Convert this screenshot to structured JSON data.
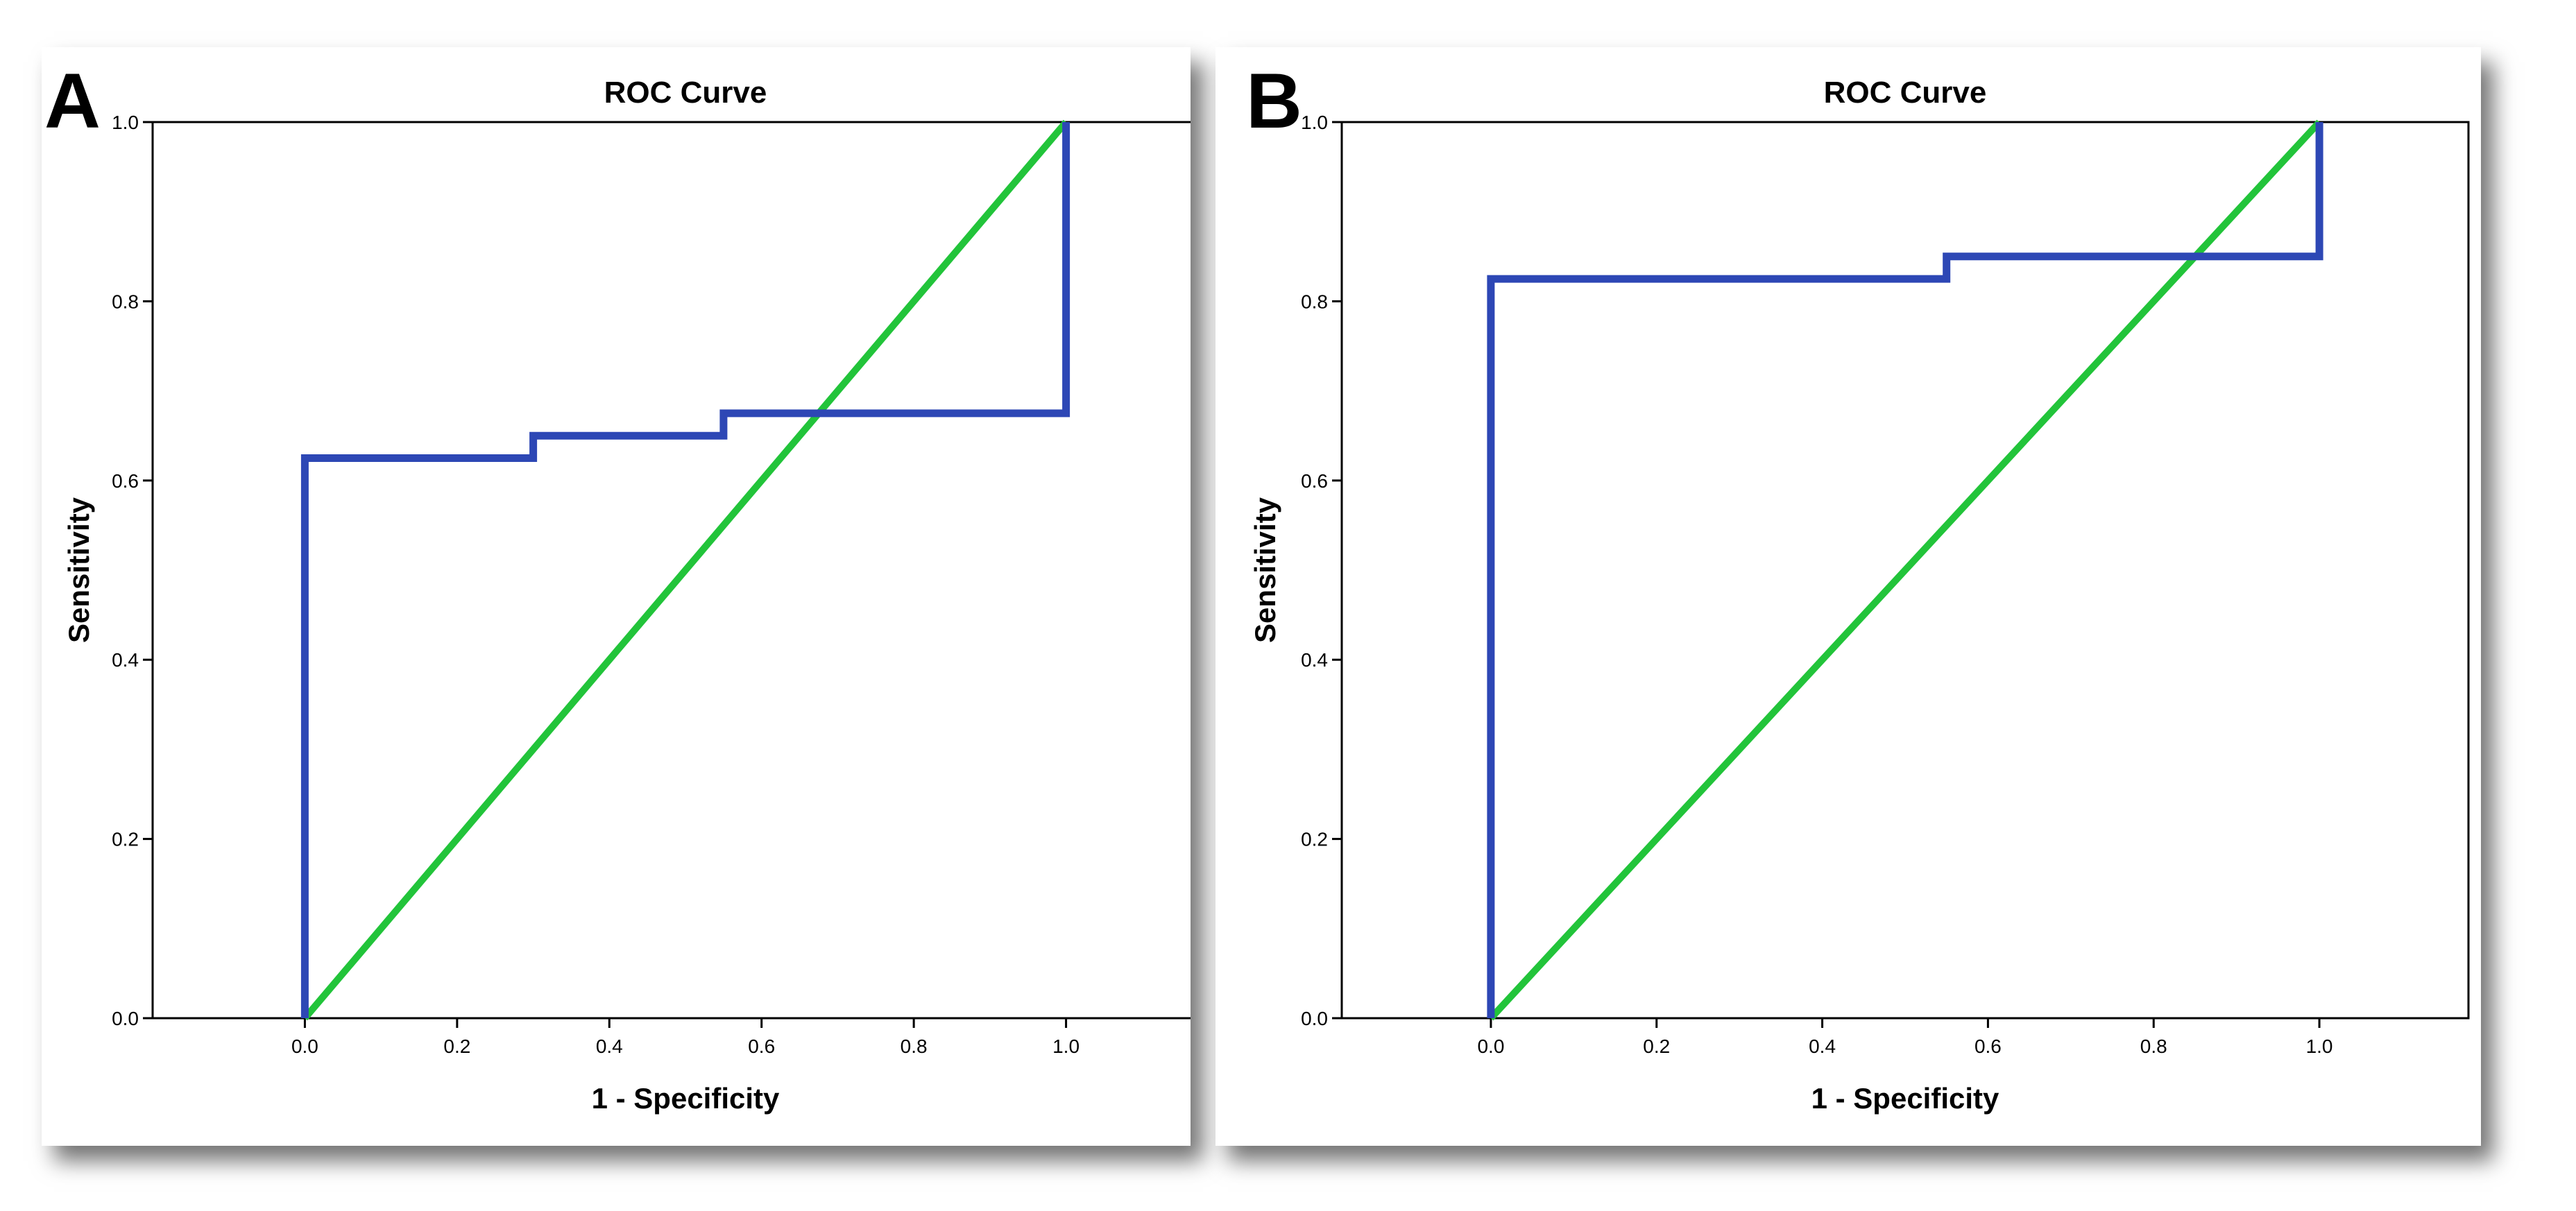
{
  "colors": {
    "roc_curve": "#2d47b5",
    "reference_line": "#22c43a",
    "axis": "#000000"
  },
  "chart_data": [
    {
      "type": "line",
      "panel_label": "A",
      "title": "ROC Curve",
      "xlabel": "1 - Specificity",
      "ylabel": "Sensitivity",
      "xlim": [
        -0.2,
        1.2
      ],
      "ylim": [
        0.0,
        1.0
      ],
      "x_ticks": [
        "0.0",
        "0.2",
        "0.4",
        "0.6",
        "0.8",
        "1.0"
      ],
      "y_ticks": [
        "0.0",
        "0.2",
        "0.4",
        "0.6",
        "0.8",
        "1.0"
      ],
      "grid": false,
      "legend": "none",
      "series": [
        {
          "name": "roc",
          "color": "#2d47b5",
          "points": [
            [
              0,
              0
            ],
            [
              0,
              0.625
            ],
            [
              0.3,
              0.625
            ],
            [
              0.3,
              0.65
            ],
            [
              0.55,
              0.65
            ],
            [
              0.55,
              0.675
            ],
            [
              1,
              0.675
            ],
            [
              1,
              1
            ]
          ]
        },
        {
          "name": "reference",
          "color": "#22c43a",
          "points": [
            [
              0,
              0
            ],
            [
              1,
              1
            ]
          ]
        }
      ]
    },
    {
      "type": "line",
      "panel_label": "B",
      "title": "ROC Curve",
      "xlabel": "1 - Specificity",
      "ylabel": "Sensitivity",
      "xlim": [
        -0.18,
        1.18
      ],
      "ylim": [
        0.0,
        1.0
      ],
      "x_ticks": [
        "0.0",
        "0.2",
        "0.4",
        "0.6",
        "0.8",
        "1.0"
      ],
      "y_ticks": [
        "0.0",
        "0.2",
        "0.4",
        "0.6",
        "0.8",
        "1.0"
      ],
      "grid": false,
      "legend": "none",
      "series": [
        {
          "name": "roc",
          "color": "#2d47b5",
          "points": [
            [
              0,
              0
            ],
            [
              0,
              0.825
            ],
            [
              0.55,
              0.825
            ],
            [
              0.55,
              0.85
            ],
            [
              1,
              0.85
            ],
            [
              1,
              1
            ]
          ]
        },
        {
          "name": "reference",
          "color": "#22c43a",
          "points": [
            [
              0,
              0
            ],
            [
              1,
              1
            ]
          ]
        }
      ]
    }
  ]
}
